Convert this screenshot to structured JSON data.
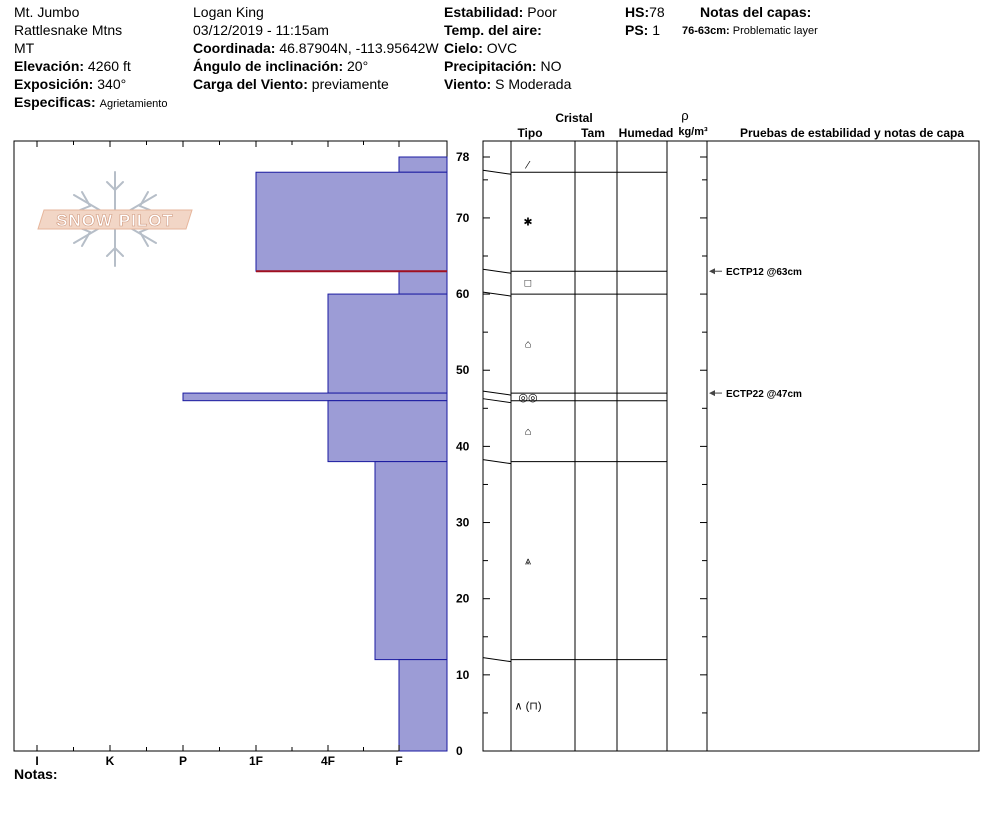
{
  "header": {
    "location": "Mt. Jumbo",
    "range": "Rattlesnake Mtns",
    "state": "MT",
    "elevation": {
      "label": "Elevación:",
      "value": "4260 ft"
    },
    "aspect": {
      "label": "Exposición:",
      "value": "340°"
    },
    "specifics": {
      "label": "Especificas:",
      "value": "Agrietamiento"
    },
    "observer": "Logan King",
    "datetime": "03/12/2019 - 11:15am",
    "coordinate": {
      "label": "Coordinada:",
      "value": "46.87904N, -113.95642W"
    },
    "slope": {
      "label": "Ángulo de inclinación:",
      "value": "20°"
    },
    "wind_loading": {
      "label": "Carga del Viento:",
      "value": "previamente"
    },
    "stability": {
      "label": "Estabilidad:",
      "value": "Poor"
    },
    "air_temp": {
      "label": "Temp. del aire:",
      "value": ""
    },
    "sky": {
      "label": "Cielo:",
      "value": "OVC"
    },
    "precip": {
      "label": "Precipitación:",
      "value": "NO"
    },
    "wind": {
      "label": "Viento:",
      "value": "S Moderada"
    },
    "hs": {
      "label": "HS:",
      "value": "78"
    },
    "ps": {
      "label": "PS:",
      "value": "1"
    },
    "layer_notes": {
      "label": "Notas del capas:",
      "range": "76-63cm:",
      "text": "Problematic layer"
    }
  },
  "logo_text": "SNOW PILOT",
  "notes_label": "Notas:",
  "colors": {
    "bar_fill": "#9c9cd6",
    "bar_stroke": "#1a1aa0",
    "problem_line": "#a01020"
  },
  "chart_data": {
    "type": "bar",
    "orientation": "horizontal",
    "hardness_ticks": [
      "I",
      "K",
      "P",
      "1F",
      "4F",
      "F"
    ],
    "hardness_axis_reversed": true,
    "y_ticks": [
      0,
      10,
      20,
      30,
      40,
      50,
      60,
      70,
      78
    ],
    "ylim": [
      0,
      78
    ],
    "layers": [
      {
        "top": 78,
        "bottom": 76,
        "hardness": "F"
      },
      {
        "top": 76,
        "bottom": 63,
        "hardness": "1F"
      },
      {
        "top": 63,
        "bottom": 60,
        "hardness": "F"
      },
      {
        "top": 60,
        "bottom": 47,
        "hardness": "4F"
      },
      {
        "top": 47,
        "bottom": 46,
        "hardness": "P"
      },
      {
        "top": 46,
        "bottom": 38,
        "hardness": "4F"
      },
      {
        "top": 38,
        "bottom": 12,
        "hardness": "4F-"
      },
      {
        "top": 12,
        "bottom": 0,
        "hardness": "F"
      }
    ],
    "problem_layer_depth": 63,
    "crystal_columns": [
      "Tipo",
      "Tam",
      "Humedad"
    ],
    "crystal_group_label": "Cristal",
    "density_label": {
      "symbol": "ρ",
      "unit": "kg/m³"
    },
    "tests_header": "Pruebas de estabilidad y notas de capa",
    "crystals": [
      {
        "from": 78,
        "to": 76,
        "symbol": "⁄"
      },
      {
        "from": 76,
        "to": 63,
        "symbol": "✱"
      },
      {
        "from": 63,
        "to": 60,
        "symbol": "□"
      },
      {
        "from": 60,
        "to": 47,
        "symbol": "⌂"
      },
      {
        "from": 47,
        "to": 46,
        "symbol": "◎◎"
      },
      {
        "from": 46,
        "to": 38,
        "symbol": "⌂"
      },
      {
        "from": 38,
        "to": 12,
        "symbol": "⩓"
      },
      {
        "from": 12,
        "to": 0,
        "symbol": "∧ (⊓)"
      }
    ],
    "tests": [
      {
        "depth": 63,
        "label": "ECTP12 @63cm"
      },
      {
        "depth": 47,
        "label": "ECTP22 @47cm"
      }
    ]
  }
}
